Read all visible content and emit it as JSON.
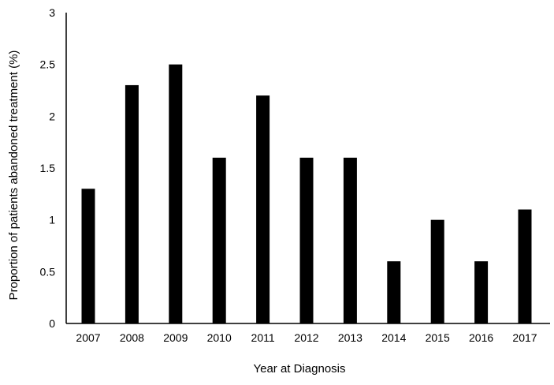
{
  "chart_data": {
    "type": "bar",
    "title": "",
    "xlabel": "Year at Diagnosis",
    "ylabel": "Proportion of patients abandoned treatment (%)",
    "categories": [
      "2007",
      "2008",
      "2009",
      "2010",
      "2011",
      "2012",
      "2013",
      "2014",
      "2015",
      "2016",
      "2017"
    ],
    "values": [
      1.3,
      2.3,
      2.5,
      1.6,
      2.2,
      1.6,
      1.6,
      0.6,
      1.0,
      0.6,
      1.1
    ],
    "ylim": [
      0,
      3
    ],
    "yticks": [
      "0",
      "0.5",
      "1",
      "1.5",
      "2",
      "2.5",
      "3"
    ],
    "grid": false,
    "legend": "none",
    "bar_color": "#000000"
  }
}
